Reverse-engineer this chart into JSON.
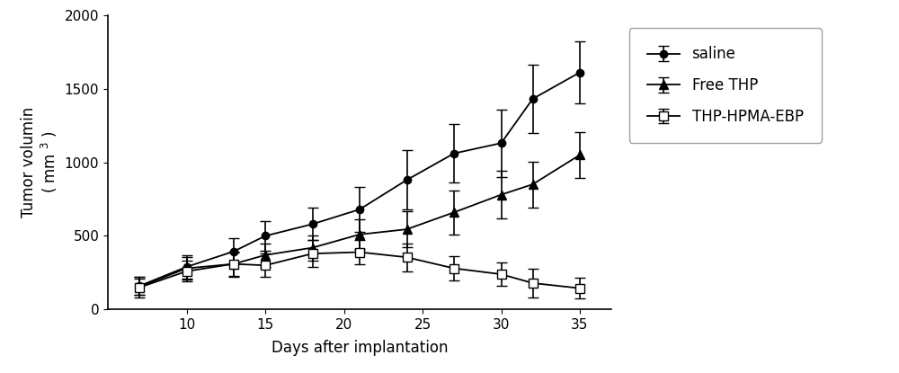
{
  "x": [
    7,
    10,
    13,
    15,
    18,
    21,
    24,
    27,
    30,
    32,
    35
  ],
  "saline_y": [
    160,
    290,
    395,
    500,
    580,
    680,
    880,
    1060,
    1130,
    1430,
    1610
  ],
  "saline_err": [
    60,
    80,
    90,
    100,
    110,
    150,
    200,
    200,
    230,
    230,
    210
  ],
  "thp_y": [
    155,
    280,
    310,
    370,
    420,
    510,
    545,
    660,
    780,
    850,
    1050
  ],
  "thp_err": [
    55,
    75,
    80,
    80,
    85,
    100,
    120,
    150,
    160,
    155,
    155
  ],
  "ebp_y": [
    150,
    260,
    310,
    300,
    380,
    390,
    355,
    280,
    240,
    180,
    145
  ],
  "ebp_err": [
    70,
    70,
    85,
    80,
    90,
    85,
    95,
    85,
    80,
    100,
    70
  ],
  "xlabel": "Days after implantation",
  "ylabel": "Tumor volumin ( mm 3)",
  "ylim": [
    0,
    2000
  ],
  "xlim": [
    5,
    37
  ],
  "yticks": [
    0,
    500,
    1000,
    1500,
    2000
  ],
  "xticks": [
    10,
    15,
    20,
    25,
    30,
    35
  ],
  "legend_labels": [
    "saline",
    "Free THP",
    "THP-HPMA-EBP"
  ],
  "line_color": "#000000",
  "bg_color": "#ffffff",
  "fontsize_label": 12,
  "fontsize_tick": 11,
  "fontsize_legend": 12
}
